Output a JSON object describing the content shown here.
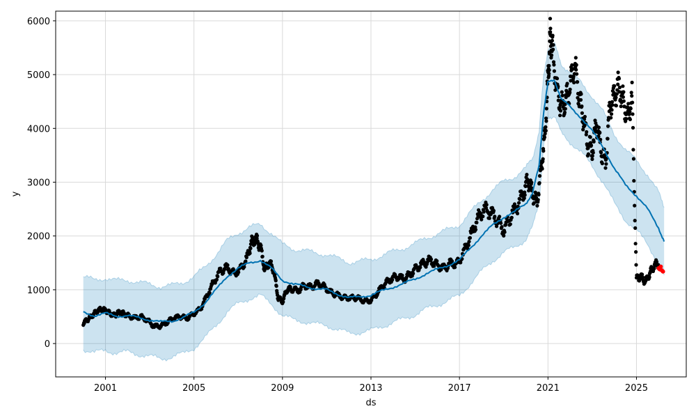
{
  "chart_data": {
    "type": "line",
    "title": "",
    "xlabel": "ds",
    "ylabel": "y",
    "xlim": [
      1998.75,
      2027.25
    ],
    "ylim": [
      -620,
      6180
    ],
    "x_ticks": [
      2001,
      2005,
      2009,
      2013,
      2017,
      2021,
      2025
    ],
    "x_tick_labels": [
      "2001",
      "2005",
      "2009",
      "2013",
      "2017",
      "2021",
      "2025"
    ],
    "y_ticks": [
      0,
      1000,
      2000,
      3000,
      4000,
      5000,
      6000
    ],
    "y_tick_labels": [
      "0",
      "1000",
      "2000",
      "3000",
      "4000",
      "5000",
      "6000"
    ],
    "grid": true,
    "legend": "none",
    "colors": {
      "forecast": "#0072B2",
      "interval": "#0072B2",
      "observed": "#000000",
      "recent": "#ff0000",
      "grid": "#d9d9d9"
    },
    "series": [
      {
        "kind": "forecast-line",
        "x": [
          2000.0,
          2000.5,
          2001.0,
          2001.5,
          2002.0,
          2002.5,
          2003.0,
          2003.5,
          2004.0,
          2004.5,
          2005.0,
          2005.5,
          2006.0,
          2006.5,
          2007.0,
          2007.5,
          2008.0,
          2008.5,
          2009.0,
          2009.5,
          2010.0,
          2010.5,
          2011.0,
          2011.5,
          2012.0,
          2012.5,
          2013.0,
          2013.5,
          2014.0,
          2014.5,
          2015.0,
          2015.5,
          2016.0,
          2016.5,
          2017.0,
          2017.5,
          2018.0,
          2018.5,
          2019.0,
          2019.5,
          2020.0,
          2020.3,
          2020.6,
          2020.8,
          2021.0,
          2021.3,
          2021.6,
          2022.0,
          2022.5,
          2023.0,
          2023.5,
          2024.0,
          2024.5,
          2025.0,
          2025.5,
          2026.0,
          2026.25
        ],
        "y": [
          580,
          520,
          560,
          510,
          520,
          480,
          440,
          400,
          420,
          480,
          580,
          760,
          1000,
          1250,
          1400,
          1500,
          1550,
          1400,
          1180,
          1100,
          1070,
          1020,
          1000,
          920,
          850,
          870,
          900,
          980,
          1050,
          1120,
          1200,
          1300,
          1380,
          1460,
          1550,
          1780,
          2000,
          2200,
          2350,
          2450,
          2600,
          2800,
          3300,
          4300,
          4850,
          4900,
          4550,
          4400,
          4200,
          3950,
          3650,
          3250,
          2950,
          2750,
          2500,
          2150,
          1900
        ]
      },
      {
        "kind": "uncertainty-interval",
        "x": [
          2000.0,
          2000.5,
          2001.0,
          2001.5,
          2002.0,
          2002.5,
          2003.0,
          2003.5,
          2004.0,
          2004.5,
          2005.0,
          2005.5,
          2006.0,
          2006.5,
          2007.0,
          2007.5,
          2008.0,
          2008.5,
          2009.0,
          2009.5,
          2010.0,
          2010.5,
          2011.0,
          2011.5,
          2012.0,
          2012.5,
          2013.0,
          2013.5,
          2014.0,
          2014.5,
          2015.0,
          2015.5,
          2016.0,
          2016.5,
          2017.0,
          2017.5,
          2018.0,
          2018.5,
          2019.0,
          2019.5,
          2020.0,
          2020.3,
          2020.6,
          2020.8,
          2021.0,
          2021.3,
          2021.6,
          2022.0,
          2022.5,
          2023.0,
          2023.5,
          2024.0,
          2024.5,
          2025.0,
          2025.5,
          2026.0,
          2026.25
        ],
        "lower": [
          -100,
          -170,
          -130,
          -170,
          -160,
          -200,
          -240,
          -280,
          -250,
          -190,
          -80,
          100,
          340,
          590,
          740,
          840,
          890,
          740,
          520,
          440,
          410,
          360,
          340,
          260,
          190,
          210,
          240,
          320,
          390,
          460,
          540,
          640,
          720,
          800,
          890,
          1120,
          1340,
          1540,
          1690,
          1790,
          1940,
          2150,
          2650,
          3650,
          4200,
          4250,
          3900,
          3750,
          3550,
          3300,
          3000,
          2600,
          2300,
          2100,
          1850,
          1500,
          1250
        ],
        "upper": [
          1240,
          1180,
          1220,
          1170,
          1180,
          1140,
          1100,
          1060,
          1080,
          1140,
          1240,
          1420,
          1660,
          1910,
          2060,
          2160,
          2210,
          2060,
          1840,
          1760,
          1730,
          1680,
          1660,
          1580,
          1510,
          1530,
          1560,
          1640,
          1710,
          1780,
          1860,
          1960,
          2040,
          2120,
          2210,
          2440,
          2660,
          2860,
          3010,
          3110,
          3260,
          3450,
          3950,
          4950,
          5500,
          5550,
          5200,
          5050,
          4850,
          4600,
          4300,
          3900,
          3600,
          3400,
          3150,
          2800,
          2550
        ]
      },
      {
        "kind": "observed-points",
        "x": [
          2000.0,
          2000.2,
          2000.4,
          2000.6,
          2000.8,
          2001.0,
          2001.2,
          2001.4,
          2001.6,
          2001.8,
          2002.0,
          2002.3,
          2002.6,
          2002.9,
          2003.2,
          2003.5,
          2003.8,
          2004.1,
          2004.4,
          2004.7,
          2005.0,
          2005.3,
          2005.6,
          2005.9,
          2006.2,
          2006.5,
          2006.8,
          2007.1,
          2007.4,
          2007.6,
          2007.8,
          2008.0,
          2008.2,
          2008.4,
          2008.6,
          2008.8,
          2009.0,
          2009.2,
          2009.4,
          2009.7,
          2010.0,
          2010.3,
          2010.6,
          2010.9,
          2011.2,
          2011.5,
          2011.8,
          2012.1,
          2012.4,
          2012.7,
          2013.0,
          2013.3,
          2013.6,
          2013.9,
          2014.2,
          2014.5,
          2014.8,
          2015.1,
          2015.4,
          2015.7,
          2016.0,
          2016.3,
          2016.6,
          2016.9,
          2017.2,
          2017.5,
          2017.8,
          2018.1,
          2018.4,
          2018.7,
          2019.0,
          2019.3,
          2019.6,
          2019.9,
          2020.1,
          2020.3,
          2020.5,
          2020.7,
          2020.85,
          2021.0,
          2021.1,
          2021.2,
          2021.4,
          2021.6,
          2021.8,
          2022.0,
          2022.2,
          2022.4,
          2022.6,
          2022.8,
          2023.0,
          2023.2,
          2023.4,
          2023.6,
          2023.8,
          2024.0,
          2024.2,
          2024.4,
          2024.6,
          2024.8,
          2025.0,
          2025.2,
          2025.4,
          2025.6,
          2025.8,
          2026.0
        ],
        "y": [
          380,
          450,
          520,
          600,
          640,
          620,
          560,
          520,
          580,
          560,
          520,
          480,
          500,
          430,
          320,
          330,
          400,
          480,
          500,
          470,
          560,
          650,
          900,
          1150,
          1350,
          1420,
          1300,
          1380,
          1600,
          1880,
          1950,
          1800,
          1380,
          1500,
          1380,
          850,
          780,
          1000,
          1020,
          980,
          1080,
          1050,
          1120,
          1050,
          950,
          900,
          850,
          850,
          850,
          790,
          800,
          950,
          1100,
          1200,
          1250,
          1200,
          1300,
          1420,
          1500,
          1550,
          1450,
          1400,
          1500,
          1480,
          1700,
          2000,
          2300,
          2500,
          2450,
          2300,
          2100,
          2350,
          2550,
          2800,
          3050,
          2800,
          2600,
          3300,
          3800,
          4900,
          5700,
          5500,
          4700,
          4400,
          4500,
          4800,
          5200,
          4600,
          4200,
          3700,
          3600,
          4100,
          3600,
          3350,
          4400,
          4600,
          4800,
          4500,
          4200,
          4600,
          1200,
          1250,
          1150,
          1300,
          1450,
          1500
        ]
      },
      {
        "kind": "recent-points",
        "x": [
          2026.0,
          2026.05,
          2026.1,
          2026.15,
          2026.2
        ],
        "y": [
          1400,
          1380,
          1430,
          1360,
          1340
        ]
      }
    ]
  }
}
